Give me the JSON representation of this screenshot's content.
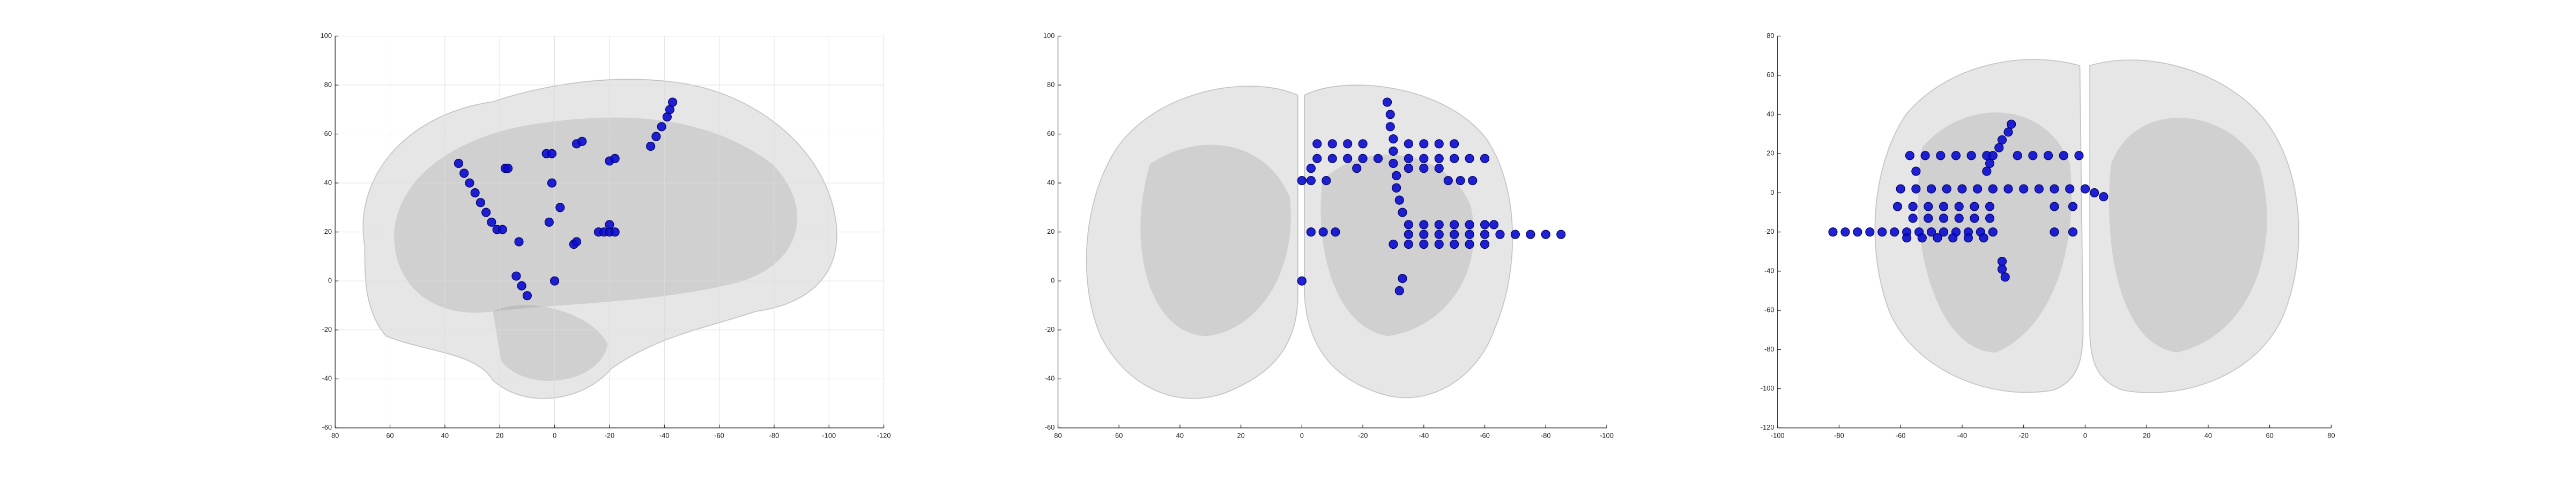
{
  "chart_data": [
    {
      "type": "scatter",
      "color": "#0a0ad0",
      "grid": true,
      "xlim": [
        80,
        -120
      ],
      "ylim": [
        -60,
        100
      ],
      "xticks": [
        80,
        60,
        40,
        20,
        0,
        -20,
        -40,
        -60,
        -80,
        -100,
        -120
      ],
      "yticks": [
        -60,
        -40,
        -20,
        0,
        20,
        40,
        60,
        80,
        100
      ],
      "x": [
        35,
        33,
        31,
        29,
        27,
        25,
        23,
        21,
        19,
        18,
        17,
        13,
        14,
        12,
        10,
        3,
        1,
        1,
        -2,
        2,
        0,
        -8,
        -10,
        -7,
        -8,
        -20,
        -22,
        -16,
        -18,
        -20,
        -22,
        -20,
        -35,
        -37,
        -39,
        -41,
        -42,
        -43
      ],
      "y": [
        48,
        44,
        40,
        36,
        32,
        28,
        24,
        21,
        21,
        46,
        46,
        16,
        2,
        -2,
        -6,
        52,
        52,
        40,
        30,
        24,
        0,
        56,
        57,
        15,
        16,
        49,
        50,
        20,
        20,
        20,
        20,
        23,
        55,
        59,
        63,
        67,
        70,
        73
      ]
    },
    {
      "type": "scatter",
      "color": "#0a0ad0",
      "grid": false,
      "xlim": [
        80,
        -100
      ],
      "ylim": [
        -60,
        100
      ],
      "xticks": [
        80,
        60,
        40,
        20,
        0,
        -20,
        -40,
        -60,
        -80,
        -100
      ],
      "yticks": [
        -60,
        -40,
        -20,
        0,
        20,
        40,
        60,
        80,
        100
      ],
      "x": [
        -28,
        -29,
        -29,
        -30,
        -30,
        -30,
        -31,
        -31,
        -32,
        -33,
        -5,
        -10,
        -15,
        -20,
        -25,
        -35,
        -40,
        -45,
        -50,
        -55,
        -60,
        -5,
        -10,
        -15,
        -20,
        -35,
        -40,
        -45,
        -50,
        -3,
        -18,
        -35,
        -40,
        -45,
        0,
        -3,
        -8,
        -48,
        -52,
        -56,
        -35,
        -40,
        -45,
        -50,
        -55,
        -60,
        -63,
        -35,
        -40,
        -45,
        -50,
        -55,
        -60,
        -65,
        -70,
        -75,
        -80,
        -85,
        -30,
        -35,
        -40,
        -45,
        -50,
        -55,
        -60,
        -3,
        -7,
        -11,
        -33,
        -32,
        0
      ],
      "y": [
        73,
        68,
        63,
        58,
        53,
        48,
        43,
        38,
        33,
        28,
        50,
        50,
        50,
        50,
        50,
        50,
        50,
        50,
        50,
        50,
        50,
        56,
        56,
        56,
        56,
        56,
        56,
        56,
        56,
        46,
        46,
        46,
        46,
        46,
        41,
        41,
        41,
        41,
        41,
        41,
        23,
        23,
        23,
        23,
        23,
        23,
        23,
        19,
        19,
        19,
        19,
        19,
        19,
        19,
        19,
        19,
        19,
        19,
        15,
        15,
        15,
        15,
        15,
        15,
        15,
        20,
        20,
        20,
        1,
        -4,
        0
      ]
    },
    {
      "type": "scatter",
      "color": "#0a0ad0",
      "grid": false,
      "xlim": [
        -100,
        80
      ],
      "ylim": [
        -120,
        80
      ],
      "xticks": [
        -100,
        -80,
        -60,
        -40,
        -20,
        0,
        20,
        40,
        60,
        80
      ],
      "yticks": [
        -120,
        -100,
        -80,
        -60,
        -40,
        -20,
        0,
        20,
        40,
        60,
        80
      ],
      "x": [
        -57,
        -52,
        -47,
        -42,
        -37,
        -32,
        -22,
        -17,
        -12,
        -7,
        -2,
        -55,
        -60,
        -55,
        -50,
        -45,
        -40,
        -35,
        -30,
        -25,
        -20,
        -15,
        -10,
        -5,
        0,
        3,
        6,
        -61,
        -56,
        -51,
        -46,
        -41,
        -36,
        -31,
        -10,
        -4,
        -56,
        -51,
        -46,
        -41,
        -36,
        -31,
        -82,
        -78,
        -74,
        -70,
        -66,
        -62,
        -58,
        -54,
        -50,
        -46,
        -42,
        -38,
        -34,
        -30,
        -10,
        -4,
        -58,
        -53,
        -48,
        -43,
        -38,
        -33,
        -24,
        -25,
        -27,
        -28,
        -30,
        -31,
        -32,
        -27,
        -27,
        -26
      ],
      "y": [
        19,
        19,
        19,
        19,
        19,
        19,
        19,
        19,
        19,
        19,
        19,
        11,
        2,
        2,
        2,
        2,
        2,
        2,
        2,
        2,
        2,
        2,
        2,
        2,
        2,
        0,
        -2,
        -7,
        -7,
        -7,
        -7,
        -7,
        -7,
        -7,
        -7,
        -7,
        -13,
        -13,
        -13,
        -13,
        -13,
        -13,
        -20,
        -20,
        -20,
        -20,
        -20,
        -20,
        -20,
        -20,
        -20,
        -20,
        -20,
        -20,
        -20,
        -20,
        -20,
        -20,
        -23,
        -23,
        -23,
        -23,
        -23,
        -23,
        35,
        31,
        27,
        23,
        19,
        15,
        11,
        -35,
        -39,
        -43
      ]
    }
  ]
}
